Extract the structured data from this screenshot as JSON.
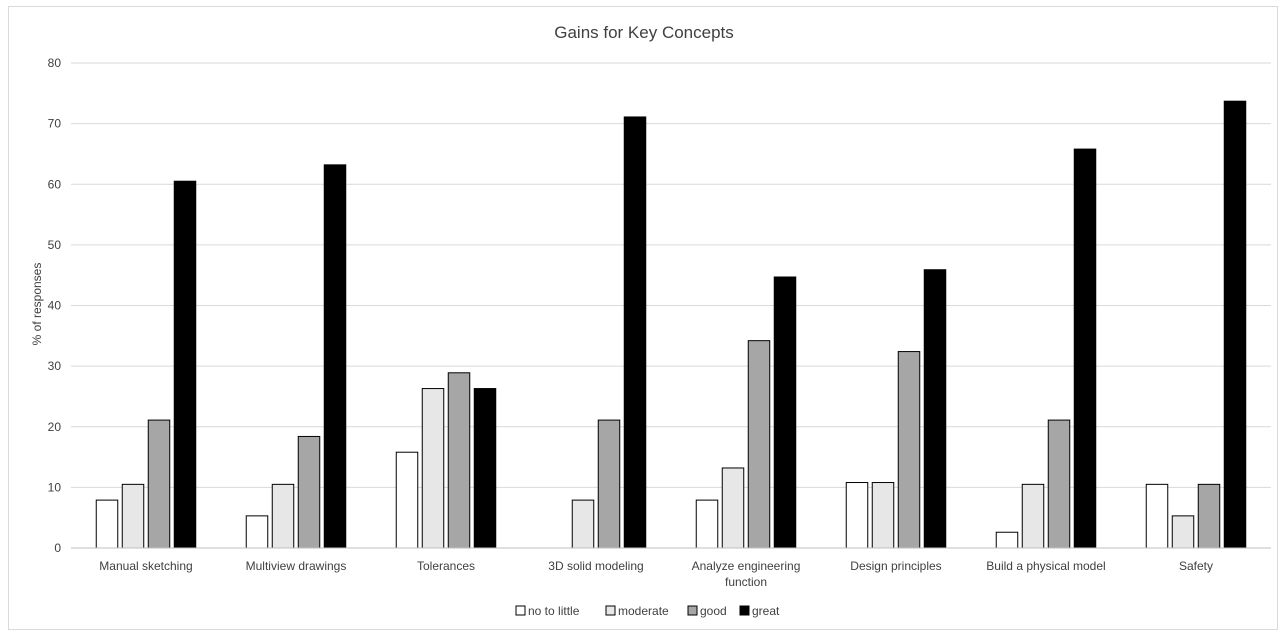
{
  "chart_data": {
    "type": "bar",
    "title": "Gains for Key Concepts",
    "xlabel": "",
    "ylabel": "% of responses",
    "ylim": [
      0,
      80
    ],
    "yticks": [
      0,
      10,
      20,
      30,
      40,
      50,
      60,
      70,
      80
    ],
    "grid": true,
    "legend_position": "bottom",
    "categories": [
      "Manual sketching",
      "Multiview drawings",
      "Tolerances",
      "3D solid modeling",
      "Analyze engineering function",
      "Design principles",
      "Build a physical model",
      "Safety"
    ],
    "category_lines": [
      [
        "Manual sketching"
      ],
      [
        "Multiview drawings"
      ],
      [
        "Tolerances"
      ],
      [
        "3D solid modeling"
      ],
      [
        "Analyze engineering",
        "function"
      ],
      [
        "Design principles"
      ],
      [
        "Build a physical model"
      ],
      [
        "Safety"
      ]
    ],
    "series": [
      {
        "name": "no to little",
        "color": "#ffffff",
        "values": [
          7.9,
          5.3,
          15.8,
          0,
          7.9,
          10.8,
          2.6,
          10.5
        ]
      },
      {
        "name": "moderate",
        "color": "#e7e7e7",
        "values": [
          10.5,
          10.5,
          26.3,
          7.9,
          13.2,
          10.8,
          10.5,
          5.3
        ]
      },
      {
        "name": "good",
        "color": "#a6a6a6",
        "values": [
          21.1,
          18.4,
          28.9,
          21.1,
          34.2,
          32.4,
          21.1,
          10.5
        ]
      },
      {
        "name": "great",
        "color": "#000000",
        "values": [
          60.5,
          63.2,
          26.3,
          71.1,
          44.7,
          45.9,
          65.8,
          73.7
        ]
      }
    ]
  }
}
